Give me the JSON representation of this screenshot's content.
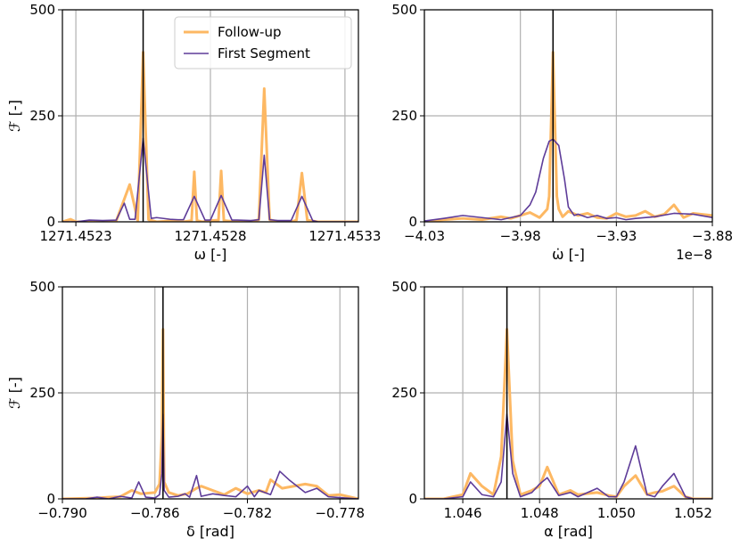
{
  "colors": {
    "followup": "#fdb863",
    "first": "#5e3c99",
    "truth": "#000000",
    "grid": "#b0b0b0",
    "axes": "#000000"
  },
  "legend": {
    "followup_label": "Follow-up",
    "first_label": "First Segment"
  },
  "chart_data": [
    {
      "type": "line",
      "panel": "top-left",
      "xlabel": "ω [-]",
      "ylabel": "ℱ [-]",
      "xlim": [
        1271.45225,
        1271.45335
      ],
      "ylim": [
        0,
        500
      ],
      "xticks": [
        1271.4523,
        1271.4528,
        1271.4533
      ],
      "xtick_labels": [
        "1271.4523",
        "1271.4528",
        "1271.4533"
      ],
      "yticks": [
        0,
        250,
        500
      ],
      "ytick_labels": [
        "0",
        "250",
        "500"
      ],
      "offset_text": "",
      "truth": 1271.45255,
      "grid": true,
      "legend": "top-right",
      "series": [
        {
          "name": "Follow-up",
          "x": [
            1271.45225,
            1271.45228,
            1271.4523,
            1271.4524,
            1271.45245,
            1271.4525,
            1271.45253,
            1271.45255,
            1271.45257,
            1271.4526,
            1271.45265,
            1271.4527,
            1271.45273,
            1271.45274,
            1271.45275,
            1271.45277,
            1271.4528,
            1271.45283,
            1271.45284,
            1271.45285,
            1271.4529,
            1271.45295,
            1271.45298,
            1271.453,
            1271.45302,
            1271.45305,
            1271.4531,
            1271.45312,
            1271.45314,
            1271.45316,
            1271.4532,
            1271.4533,
            1271.45335
          ],
          "y": [
            0,
            6,
            0,
            0,
            2,
            88,
            3,
            400,
            5,
            0,
            2,
            0,
            3,
            118,
            3,
            0,
            3,
            4,
            120,
            3,
            0,
            0,
            5,
            314,
            5,
            0,
            0,
            4,
            115,
            4,
            0,
            0,
            0
          ]
        },
        {
          "name": "First Segment",
          "x": [
            1271.45225,
            1271.4523,
            1271.45235,
            1271.4524,
            1271.45245,
            1271.45248,
            1271.4525,
            1271.45252,
            1271.45255,
            1271.45258,
            1271.4526,
            1271.45265,
            1271.45268,
            1271.4527,
            1271.45274,
            1271.45278,
            1271.4528,
            1271.45284,
            1271.45288,
            1271.4529,
            1271.45295,
            1271.45298,
            1271.453,
            1271.45302,
            1271.45305,
            1271.4531,
            1271.45314,
            1271.45318,
            1271.4532,
            1271.4533,
            1271.45335
          ],
          "y": [
            0,
            0,
            4,
            3,
            4,
            44,
            6,
            6,
            197,
            8,
            10,
            6,
            5,
            5,
            60,
            4,
            4,
            62,
            4,
            4,
            3,
            5,
            157,
            5,
            3,
            3,
            60,
            3,
            0,
            0,
            0
          ]
        }
      ]
    },
    {
      "type": "line",
      "panel": "top-right",
      "xlabel": "ω̇ [-]",
      "ylabel": "",
      "xlim": [
        -4.03,
        -3.88
      ],
      "ylim": [
        0,
        500
      ],
      "xticks": [
        -4.03,
        -3.98,
        -3.93,
        -3.88
      ],
      "xtick_labels": [
        "−4.03",
        "−3.98",
        "−3.93",
        "−3.88"
      ],
      "yticks": [
        0,
        250,
        500
      ],
      "ytick_labels": [
        "0",
        "250",
        "500"
      ],
      "offset_text": "1e−8",
      "truth": -3.963,
      "grid": true,
      "series": [
        {
          "name": "Follow-up",
          "x": [
            -4.03,
            -4.02,
            -4.01,
            -4.0,
            -3.99,
            -3.985,
            -3.975,
            -3.97,
            -3.966,
            -3.965,
            -3.963,
            -3.961,
            -3.96,
            -3.958,
            -3.955,
            -3.95,
            -3.945,
            -3.94,
            -3.935,
            -3.93,
            -3.925,
            -3.92,
            -3.915,
            -3.91,
            -3.905,
            -3.9,
            -3.895,
            -3.89,
            -3.88
          ],
          "y": [
            0,
            5,
            8,
            5,
            12,
            8,
            22,
            10,
            30,
            60,
            400,
            60,
            30,
            12,
            25,
            15,
            20,
            10,
            8,
            20,
            12,
            15,
            25,
            12,
            18,
            40,
            10,
            20,
            15
          ]
        },
        {
          "name": "First Segment",
          "x": [
            -4.03,
            -4.02,
            -4.01,
            -4.0,
            -3.99,
            -3.98,
            -3.975,
            -3.972,
            -3.968,
            -3.965,
            -3.963,
            -3.96,
            -3.957,
            -3.955,
            -3.952,
            -3.95,
            -3.945,
            -3.94,
            -3.935,
            -3.93,
            -3.925,
            -3.92,
            -3.91,
            -3.9,
            -3.89,
            -3.88
          ],
          "y": [
            2,
            8,
            15,
            10,
            5,
            15,
            40,
            70,
            150,
            190,
            195,
            180,
            100,
            35,
            15,
            18,
            10,
            15,
            8,
            10,
            5,
            8,
            12,
            20,
            18,
            10
          ]
        }
      ]
    },
    {
      "type": "line",
      "panel": "bottom-left",
      "xlabel": "δ [rad]",
      "ylabel": "ℱ [-]",
      "xlim": [
        -0.79,
        -0.7772
      ],
      "ylim": [
        0,
        500
      ],
      "xticks": [
        -0.79,
        -0.786,
        -0.782,
        -0.778
      ],
      "xtick_labels": [
        "−0.790",
        "−0.786",
        "−0.782",
        "−0.778"
      ],
      "yticks": [
        0,
        250,
        500
      ],
      "ytick_labels": [
        "0",
        "250",
        "500"
      ],
      "offset_text": "",
      "truth": -0.78565,
      "grid": true,
      "series": [
        {
          "name": "Follow-up",
          "x": [
            -0.79,
            -0.7885,
            -0.788,
            -0.7875,
            -0.787,
            -0.7866,
            -0.786,
            -0.7858,
            -0.7857,
            -0.78565,
            -0.7856,
            -0.7854,
            -0.785,
            -0.7846,
            -0.7842,
            -0.784,
            -0.7835,
            -0.783,
            -0.7825,
            -0.782,
            -0.7815,
            -0.7812,
            -0.781,
            -0.7805,
            -0.78,
            -0.7795,
            -0.779,
            -0.7785,
            -0.778,
            -0.7772
          ],
          "y": [
            0,
            2,
            4,
            5,
            20,
            12,
            15,
            35,
            150,
            400,
            40,
            15,
            8,
            12,
            25,
            30,
            20,
            10,
            25,
            12,
            20,
            15,
            45,
            25,
            30,
            35,
            30,
            8,
            10,
            0
          ]
        },
        {
          "name": "First Segment",
          "x": [
            -0.79,
            -0.789,
            -0.7885,
            -0.788,
            -0.7875,
            -0.787,
            -0.7867,
            -0.7864,
            -0.786,
            -0.7858,
            -0.7857,
            -0.78565,
            -0.7856,
            -0.7854,
            -0.785,
            -0.7847,
            -0.7845,
            -0.7842,
            -0.784,
            -0.7835,
            -0.783,
            -0.7825,
            -0.782,
            -0.7817,
            -0.7815,
            -0.781,
            -0.7806,
            -0.7802,
            -0.7795,
            -0.779,
            -0.7785,
            -0.778,
            -0.7772
          ],
          "y": [
            0,
            0,
            4,
            0,
            6,
            2,
            40,
            4,
            2,
            10,
            60,
            200,
            20,
            4,
            6,
            12,
            4,
            55,
            6,
            12,
            8,
            5,
            30,
            5,
            20,
            10,
            65,
            45,
            15,
            25,
            5,
            3,
            0
          ]
        }
      ]
    },
    {
      "type": "line",
      "panel": "bottom-right",
      "xlabel": "α [rad]",
      "ylabel": "",
      "xlim": [
        1.045,
        1.0525
      ],
      "ylim": [
        0,
        500
      ],
      "xticks": [
        1.046,
        1.048,
        1.05,
        1.052
      ],
      "xtick_labels": [
        "1.046",
        "1.048",
        "1.050",
        "1.052"
      ],
      "yticks": [
        0,
        250,
        500
      ],
      "ytick_labels": [
        "0",
        "250",
        "500"
      ],
      "offset_text": "",
      "truth": 1.04715,
      "grid": true,
      "series": [
        {
          "name": "Follow-up",
          "x": [
            1.045,
            1.0455,
            1.046,
            1.0462,
            1.0465,
            1.0468,
            1.047,
            1.04715,
            1.0473,
            1.0475,
            1.0478,
            1.048,
            1.0482,
            1.0485,
            1.0488,
            1.049,
            1.0495,
            1.0498,
            1.05,
            1.0502,
            1.0505,
            1.0508,
            1.051,
            1.0512,
            1.0515,
            1.0518,
            1.052,
            1.0525
          ],
          "y": [
            0,
            0,
            10,
            60,
            30,
            10,
            100,
            400,
            90,
            10,
            20,
            30,
            75,
            10,
            20,
            10,
            15,
            8,
            5,
            30,
            55,
            10,
            15,
            18,
            30,
            5,
            0,
            0
          ]
        },
        {
          "name": "First Segment",
          "x": [
            1.045,
            1.0455,
            1.046,
            1.0462,
            1.0465,
            1.0468,
            1.047,
            1.04715,
            1.0473,
            1.0475,
            1.0478,
            1.048,
            1.0482,
            1.0485,
            1.0488,
            1.049,
            1.0495,
            1.0498,
            1.05,
            1.0502,
            1.0505,
            1.0508,
            1.051,
            1.0512,
            1.0515,
            1.0518,
            1.052,
            1.0525
          ],
          "y": [
            0,
            0,
            5,
            40,
            10,
            5,
            40,
            200,
            60,
            5,
            15,
            35,
            50,
            8,
            15,
            5,
            25,
            5,
            5,
            40,
            125,
            10,
            5,
            30,
            60,
            5,
            0,
            0
          ]
        }
      ]
    }
  ]
}
